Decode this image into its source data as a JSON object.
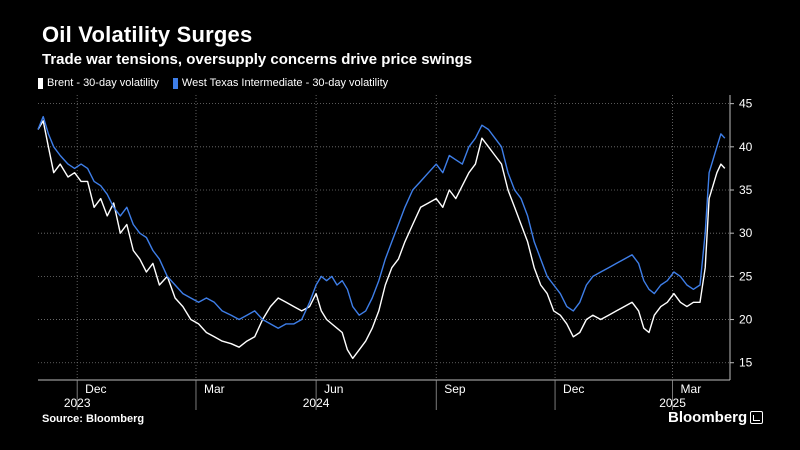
{
  "title": "Oil Volatility Surges",
  "subtitle": "Trade war tensions, oversupply concerns drive price swings",
  "source": "Source: Bloomberg",
  "brand": "Bloomberg",
  "colors": {
    "background": "#000000",
    "brent": "#ffffff",
    "wti": "#3e7ee8",
    "grid": "#777777"
  },
  "chart_data": {
    "type": "line",
    "title": "Oil Volatility Surges",
    "subtitle": "Trade war tensions, oversupply concerns drive price swings",
    "y_axis_position": "right",
    "ylim": [
      13,
      46
    ],
    "yticks": [
      15,
      20,
      25,
      30,
      35,
      40,
      45
    ],
    "xlim": [
      "2023-11-01",
      "2025-04-14"
    ],
    "xticks": [
      {
        "date": "2023-12-01",
        "label": "Dec",
        "year": "2023"
      },
      {
        "date": "2024-03-01",
        "label": "Mar"
      },
      {
        "date": "2024-06-01",
        "label": "Jun",
        "year": "2024"
      },
      {
        "date": "2024-09-01",
        "label": "Sep"
      },
      {
        "date": "2024-12-01",
        "label": "Dec"
      },
      {
        "date": "2025-03-01",
        "label": "Mar",
        "year": "2025"
      }
    ],
    "grid": "horizontal-dotted",
    "legend_position": "top-left",
    "series": [
      {
        "name": "Brent - 30-day volatility",
        "color": "#ffffff",
        "points": [
          [
            "2023-11-01",
            42.0
          ],
          [
            "2023-11-05",
            43.0
          ],
          [
            "2023-11-09",
            40.0
          ],
          [
            "2023-11-13",
            37.0
          ],
          [
            "2023-11-18",
            38.0
          ],
          [
            "2023-11-24",
            36.5
          ],
          [
            "2023-11-29",
            37.0
          ],
          [
            "2023-12-04",
            36.0
          ],
          [
            "2023-12-09",
            36.0
          ],
          [
            "2023-12-14",
            33.0
          ],
          [
            "2023-12-19",
            34.0
          ],
          [
            "2023-12-24",
            32.0
          ],
          [
            "2023-12-29",
            33.5
          ],
          [
            "2024-01-03",
            30.0
          ],
          [
            "2024-01-08",
            31.0
          ],
          [
            "2024-01-13",
            28.0
          ],
          [
            "2024-01-18",
            27.0
          ],
          [
            "2024-01-23",
            25.5
          ],
          [
            "2024-01-28",
            26.5
          ],
          [
            "2024-02-02",
            24.0
          ],
          [
            "2024-02-08",
            25.0
          ],
          [
            "2024-02-14",
            22.5
          ],
          [
            "2024-02-20",
            21.5
          ],
          [
            "2024-02-26",
            20.0
          ],
          [
            "2024-03-03",
            19.5
          ],
          [
            "2024-03-09",
            18.5
          ],
          [
            "2024-03-15",
            18.0
          ],
          [
            "2024-03-21",
            17.5
          ],
          [
            "2024-03-28",
            17.2
          ],
          [
            "2024-04-03",
            16.8
          ],
          [
            "2024-04-09",
            17.5
          ],
          [
            "2024-04-15",
            18.0
          ],
          [
            "2024-04-21",
            20.0
          ],
          [
            "2024-04-27",
            21.5
          ],
          [
            "2024-05-03",
            22.5
          ],
          [
            "2024-05-09",
            22.0
          ],
          [
            "2024-05-15",
            21.5
          ],
          [
            "2024-05-21",
            21.0
          ],
          [
            "2024-05-27",
            21.5
          ],
          [
            "2024-06-01",
            23.0
          ],
          [
            "2024-06-05",
            21.0
          ],
          [
            "2024-06-09",
            20.0
          ],
          [
            "2024-06-13",
            19.5
          ],
          [
            "2024-06-17",
            19.0
          ],
          [
            "2024-06-21",
            18.5
          ],
          [
            "2024-06-25",
            16.5
          ],
          [
            "2024-06-29",
            15.5
          ],
          [
            "2024-07-04",
            16.5
          ],
          [
            "2024-07-09",
            17.5
          ],
          [
            "2024-07-14",
            19.0
          ],
          [
            "2024-07-19",
            21.0
          ],
          [
            "2024-07-24",
            24.0
          ],
          [
            "2024-07-29",
            26.0
          ],
          [
            "2024-08-03",
            27.0
          ],
          [
            "2024-08-08",
            29.0
          ],
          [
            "2024-08-14",
            31.0
          ],
          [
            "2024-08-20",
            33.0
          ],
          [
            "2024-08-26",
            33.5
          ],
          [
            "2024-09-01",
            34.0
          ],
          [
            "2024-09-06",
            33.0
          ],
          [
            "2024-09-11",
            35.0
          ],
          [
            "2024-09-16",
            34.0
          ],
          [
            "2024-09-21",
            35.5
          ],
          [
            "2024-09-26",
            37.0
          ],
          [
            "2024-10-01",
            38.0
          ],
          [
            "2024-10-06",
            41.0
          ],
          [
            "2024-10-11",
            40.0
          ],
          [
            "2024-10-16",
            39.0
          ],
          [
            "2024-10-21",
            38.0
          ],
          [
            "2024-10-26",
            35.0
          ],
          [
            "2024-10-31",
            33.0
          ],
          [
            "2024-11-05",
            31.0
          ],
          [
            "2024-11-10",
            29.0
          ],
          [
            "2024-11-15",
            26.0
          ],
          [
            "2024-11-20",
            24.0
          ],
          [
            "2024-11-25",
            23.0
          ],
          [
            "2024-11-30",
            21.0
          ],
          [
            "2024-12-05",
            20.5
          ],
          [
            "2024-12-10",
            19.5
          ],
          [
            "2024-12-15",
            18.0
          ],
          [
            "2024-12-20",
            18.5
          ],
          [
            "2024-12-25",
            20.0
          ],
          [
            "2024-12-30",
            20.5
          ],
          [
            "2025-01-05",
            20.0
          ],
          [
            "2025-01-11",
            20.5
          ],
          [
            "2025-01-17",
            21.0
          ],
          [
            "2025-01-23",
            21.5
          ],
          [
            "2025-01-29",
            22.0
          ],
          [
            "2025-02-03",
            21.0
          ],
          [
            "2025-02-07",
            19.0
          ],
          [
            "2025-02-11",
            18.5
          ],
          [
            "2025-02-15",
            20.5
          ],
          [
            "2025-02-20",
            21.5
          ],
          [
            "2025-02-25",
            22.0
          ],
          [
            "2025-03-02",
            23.0
          ],
          [
            "2025-03-07",
            22.0
          ],
          [
            "2025-03-12",
            21.5
          ],
          [
            "2025-03-17",
            22.0
          ],
          [
            "2025-03-22",
            22.0
          ],
          [
            "2025-03-26",
            26.0
          ],
          [
            "2025-03-29",
            34.0
          ],
          [
            "2025-04-01",
            35.5
          ],
          [
            "2025-04-04",
            37.0
          ],
          [
            "2025-04-07",
            38.0
          ],
          [
            "2025-04-10",
            37.5
          ]
        ]
      },
      {
        "name": "West Texas Intermediate - 30-day volatility",
        "color": "#3e7ee8",
        "points": [
          [
            "2023-11-01",
            42.0
          ],
          [
            "2023-11-05",
            43.5
          ],
          [
            "2023-11-09",
            41.5
          ],
          [
            "2023-11-13",
            40.0
          ],
          [
            "2023-11-18",
            39.0
          ],
          [
            "2023-11-24",
            38.0
          ],
          [
            "2023-11-29",
            37.5
          ],
          [
            "2023-12-04",
            38.0
          ],
          [
            "2023-12-09",
            37.5
          ],
          [
            "2023-12-14",
            36.0
          ],
          [
            "2023-12-19",
            35.5
          ],
          [
            "2023-12-24",
            34.5
          ],
          [
            "2023-12-29",
            33.0
          ],
          [
            "2024-01-03",
            32.0
          ],
          [
            "2024-01-08",
            33.0
          ],
          [
            "2024-01-13",
            31.0
          ],
          [
            "2024-01-18",
            30.0
          ],
          [
            "2024-01-23",
            29.5
          ],
          [
            "2024-01-28",
            28.0
          ],
          [
            "2024-02-02",
            27.0
          ],
          [
            "2024-02-08",
            25.0
          ],
          [
            "2024-02-14",
            24.0
          ],
          [
            "2024-02-20",
            23.0
          ],
          [
            "2024-02-26",
            22.5
          ],
          [
            "2024-03-03",
            22.0
          ],
          [
            "2024-03-09",
            22.5
          ],
          [
            "2024-03-15",
            22.0
          ],
          [
            "2024-03-21",
            21.0
          ],
          [
            "2024-03-28",
            20.5
          ],
          [
            "2024-04-03",
            20.0
          ],
          [
            "2024-04-09",
            20.5
          ],
          [
            "2024-04-15",
            21.0
          ],
          [
            "2024-04-21",
            20.0
          ],
          [
            "2024-04-27",
            19.5
          ],
          [
            "2024-05-03",
            19.0
          ],
          [
            "2024-05-09",
            19.5
          ],
          [
            "2024-05-15",
            19.5
          ],
          [
            "2024-05-21",
            20.0
          ],
          [
            "2024-05-27",
            22.0
          ],
          [
            "2024-06-01",
            24.0
          ],
          [
            "2024-06-05",
            25.0
          ],
          [
            "2024-06-09",
            24.5
          ],
          [
            "2024-06-13",
            25.0
          ],
          [
            "2024-06-17",
            24.0
          ],
          [
            "2024-06-21",
            24.5
          ],
          [
            "2024-06-25",
            23.5
          ],
          [
            "2024-06-29",
            21.5
          ],
          [
            "2024-07-04",
            20.5
          ],
          [
            "2024-07-09",
            21.0
          ],
          [
            "2024-07-14",
            22.5
          ],
          [
            "2024-07-19",
            24.5
          ],
          [
            "2024-07-24",
            27.0
          ],
          [
            "2024-07-29",
            29.0
          ],
          [
            "2024-08-03",
            31.0
          ],
          [
            "2024-08-08",
            33.0
          ],
          [
            "2024-08-14",
            35.0
          ],
          [
            "2024-08-20",
            36.0
          ],
          [
            "2024-08-26",
            37.0
          ],
          [
            "2024-09-01",
            38.0
          ],
          [
            "2024-09-06",
            37.0
          ],
          [
            "2024-09-11",
            39.0
          ],
          [
            "2024-09-16",
            38.5
          ],
          [
            "2024-09-21",
            38.0
          ],
          [
            "2024-09-26",
            40.0
          ],
          [
            "2024-10-01",
            41.0
          ],
          [
            "2024-10-06",
            42.5
          ],
          [
            "2024-10-11",
            42.0
          ],
          [
            "2024-10-16",
            41.0
          ],
          [
            "2024-10-21",
            40.0
          ],
          [
            "2024-10-26",
            37.0
          ],
          [
            "2024-10-31",
            35.0
          ],
          [
            "2024-11-05",
            34.0
          ],
          [
            "2024-11-10",
            32.0
          ],
          [
            "2024-11-15",
            29.0
          ],
          [
            "2024-11-20",
            27.0
          ],
          [
            "2024-11-25",
            25.0
          ],
          [
            "2024-11-30",
            24.0
          ],
          [
            "2024-12-05",
            23.0
          ],
          [
            "2024-12-10",
            21.5
          ],
          [
            "2024-12-15",
            21.0
          ],
          [
            "2024-12-20",
            22.0
          ],
          [
            "2024-12-25",
            24.0
          ],
          [
            "2024-12-30",
            25.0
          ],
          [
            "2025-01-05",
            25.5
          ],
          [
            "2025-01-11",
            26.0
          ],
          [
            "2025-01-17",
            26.5
          ],
          [
            "2025-01-23",
            27.0
          ],
          [
            "2025-01-29",
            27.5
          ],
          [
            "2025-02-03",
            26.5
          ],
          [
            "2025-02-07",
            24.5
          ],
          [
            "2025-02-11",
            23.5
          ],
          [
            "2025-02-15",
            23.0
          ],
          [
            "2025-02-20",
            24.0
          ],
          [
            "2025-02-25",
            24.5
          ],
          [
            "2025-03-02",
            25.5
          ],
          [
            "2025-03-07",
            25.0
          ],
          [
            "2025-03-12",
            24.0
          ],
          [
            "2025-03-17",
            23.5
          ],
          [
            "2025-03-22",
            24.0
          ],
          [
            "2025-03-26",
            30.0
          ],
          [
            "2025-03-29",
            37.0
          ],
          [
            "2025-04-01",
            38.5
          ],
          [
            "2025-04-04",
            40.0
          ],
          [
            "2025-04-07",
            41.5
          ],
          [
            "2025-04-10",
            41.0
          ]
        ]
      }
    ]
  }
}
